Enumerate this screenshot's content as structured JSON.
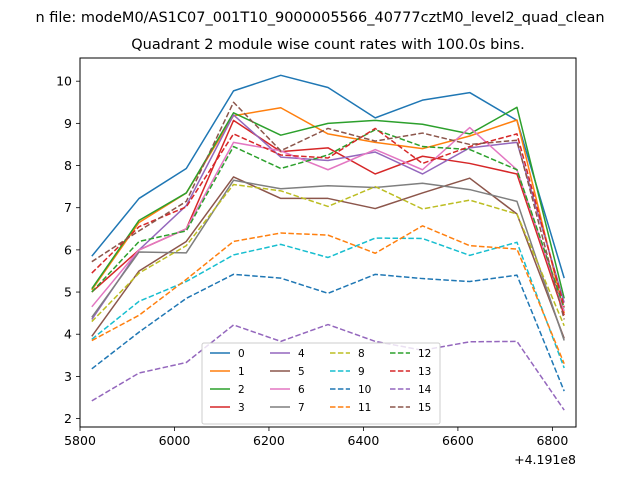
{
  "suptitle": "n file: modeM0/AS1C07_001T10_9000005566_40777cztM0_level2_quad_clean",
  "chart_data": {
    "type": "line",
    "title": "Quadrant 2 module wise count rates with 100.0s bins.",
    "xlabel": "",
    "ylabel": "",
    "offset_text": "+4.191e8",
    "x": [
      5825,
      5925,
      6025,
      6125,
      6225,
      6325,
      6425,
      6525,
      6625,
      6725,
      6825
    ],
    "xlim": [
      5800,
      6850
    ],
    "ylim": [
      1.8,
      10.55
    ],
    "xticks": [
      5800,
      6000,
      6200,
      6400,
      6600,
      6800
    ],
    "xtick_labels": [
      "5800",
      "6000",
      "6200",
      "6400",
      "6600",
      "6800"
    ],
    "yticks": [
      2,
      3,
      4,
      5,
      6,
      7,
      8,
      9,
      10
    ],
    "ytick_labels": [
      "2",
      "3",
      "4",
      "5",
      "6",
      "7",
      "8",
      "9",
      "10"
    ],
    "grid": false,
    "legend_position": "lower center",
    "series": [
      {
        "name": "0",
        "color": "#1f77b4",
        "dash": "solid",
        "values": [
          5.85,
          7.22,
          7.93,
          9.77,
          10.14,
          9.85,
          9.13,
          9.55,
          9.73,
          9.07,
          5.33
        ]
      },
      {
        "name": "1",
        "color": "#ff7f0e",
        "dash": "solid",
        "values": [
          5.05,
          6.65,
          7.35,
          9.18,
          9.37,
          8.75,
          8.55,
          8.4,
          8.7,
          9.08,
          4.5
        ]
      },
      {
        "name": "2",
        "color": "#2ca02c",
        "dash": "solid",
        "values": [
          5.08,
          6.7,
          7.35,
          9.25,
          8.72,
          9.0,
          9.07,
          8.98,
          8.75,
          9.38,
          4.85
        ]
      },
      {
        "name": "3",
        "color": "#d62728",
        "dash": "solid",
        "values": [
          5.0,
          6.0,
          6.5,
          9.07,
          8.33,
          8.42,
          7.8,
          8.22,
          8.05,
          7.8,
          4.45
        ]
      },
      {
        "name": "4",
        "color": "#9467bd",
        "dash": "solid",
        "values": [
          4.35,
          6.0,
          7.05,
          9.2,
          8.2,
          8.12,
          8.32,
          7.8,
          8.42,
          8.55,
          4.75
        ]
      },
      {
        "name": "5",
        "color": "#8c564b",
        "dash": "solid",
        "values": [
          3.95,
          5.5,
          6.2,
          7.73,
          7.22,
          7.22,
          6.98,
          7.35,
          7.7,
          6.85,
          3.9
        ]
      },
      {
        "name": "6",
        "color": "#e377c2",
        "dash": "solid",
        "values": [
          4.65,
          6.0,
          6.5,
          8.55,
          8.35,
          7.9,
          8.38,
          7.9,
          8.9,
          7.9,
          4.55
        ]
      },
      {
        "name": "7",
        "color": "#7f7f7f",
        "dash": "solid",
        "values": [
          4.4,
          5.95,
          5.93,
          7.65,
          7.45,
          7.52,
          7.48,
          7.58,
          7.43,
          7.15,
          3.85
        ]
      },
      {
        "name": "8",
        "color": "#bcbd22",
        "dash": "dashed",
        "values": [
          4.3,
          5.45,
          6.1,
          7.55,
          7.4,
          7.03,
          7.5,
          6.97,
          7.18,
          6.85,
          4.2
        ]
      },
      {
        "name": "9",
        "color": "#17becf",
        "dash": "dashed",
        "values": [
          3.88,
          4.78,
          5.25,
          5.88,
          6.13,
          5.82,
          6.28,
          6.27,
          5.87,
          6.18,
          3.2
        ]
      },
      {
        "name": "10",
        "color": "#1f77b4",
        "dash": "dashed",
        "values": [
          3.18,
          4.05,
          4.85,
          5.42,
          5.33,
          4.97,
          5.42,
          5.32,
          5.25,
          5.4,
          2.65
        ]
      },
      {
        "name": "11",
        "color": "#ff7f0e",
        "dash": "dashed",
        "values": [
          3.85,
          4.45,
          5.3,
          6.2,
          6.4,
          6.35,
          5.92,
          6.57,
          6.1,
          6.02,
          3.3
        ]
      },
      {
        "name": "12",
        "color": "#2ca02c",
        "dash": "dashed",
        "values": [
          5.0,
          6.2,
          6.45,
          8.45,
          7.93,
          8.25,
          8.85,
          8.45,
          8.38,
          7.9,
          4.62
        ]
      },
      {
        "name": "13",
        "color": "#d62728",
        "dash": "dashed",
        "values": [
          5.45,
          6.55,
          7.02,
          8.75,
          8.25,
          8.18,
          8.88,
          8.05,
          8.45,
          8.75,
          4.65
        ]
      },
      {
        "name": "14",
        "color": "#9467bd",
        "dash": "dashed",
        "values": [
          2.42,
          3.08,
          3.33,
          4.22,
          3.83,
          4.23,
          3.83,
          3.62,
          3.82,
          3.83,
          2.2
        ]
      },
      {
        "name": "15",
        "color": "#8c564b",
        "dash": "dashed",
        "values": [
          5.72,
          6.45,
          7.15,
          9.5,
          8.35,
          8.88,
          8.58,
          8.77,
          8.5,
          8.6,
          4.35
        ]
      }
    ]
  }
}
